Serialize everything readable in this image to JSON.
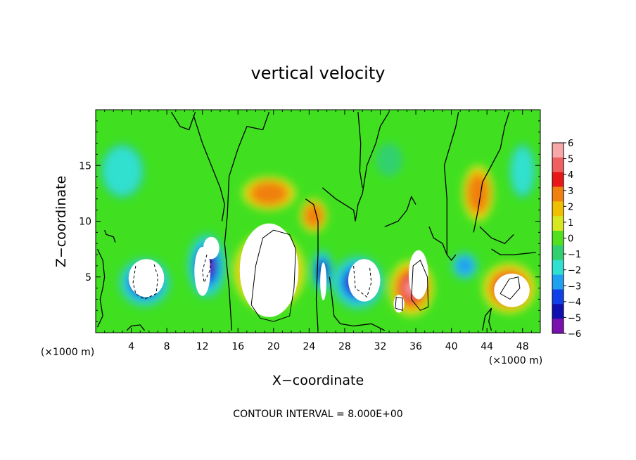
{
  "chart_data": {
    "type": "heatmap",
    "title": "vertical velocity",
    "xlabel": "X−coordinate",
    "ylabel": "Z−coordinate",
    "x_unit": "(×1000 m)",
    "x_unit_right": "(×1000 m)",
    "xlim": [
      0,
      50
    ],
    "ylim": [
      0,
      20
    ],
    "x_ticks": [
      4,
      8,
      12,
      16,
      20,
      24,
      28,
      32,
      36,
      40,
      44,
      48
    ],
    "x_tick_labels": [
      "4",
      "8",
      "12",
      "16",
      "20",
      "24",
      "28",
      "32",
      "36",
      "40",
      "44",
      "48"
    ],
    "y_ticks": [
      5,
      10,
      15
    ],
    "y_tick_labels": [
      "5",
      "10",
      "15"
    ],
    "colorbar": {
      "levels": [
        6,
        5,
        4,
        3,
        2,
        1,
        0,
        -1,
        -2,
        -3,
        -4,
        -5,
        -6
      ],
      "level_labels": [
        "6",
        "5",
        "4",
        "3",
        "2",
        "1",
        "0",
        "−1",
        "−2",
        "−3",
        "−4",
        "−5",
        "−6"
      ],
      "colors": [
        "#f8a8a8",
        "#f06060",
        "#e81818",
        "#f08010",
        "#f0c000",
        "#d8e820",
        "#50e020",
        "#30d070",
        "#30e0d0",
        "#20a0f0",
        "#1040e8",
        "#1010b0",
        "#7a10b0"
      ]
    },
    "background_color": "#40e020",
    "features": [
      {
        "name": "updraft",
        "x": 19.5,
        "z": 5.5,
        "w": 8,
        "zw": 7,
        "sign": 1,
        "amp": 1.0
      },
      {
        "name": "updraft",
        "x": 35.5,
        "z": 4.0,
        "w": 5,
        "zw": 5,
        "sign": 1,
        "amp": 1.0
      },
      {
        "name": "updraft",
        "x": 46.5,
        "z": 4.0,
        "w": 6,
        "zw": 4.5,
        "sign": 1,
        "amp": 1.0
      },
      {
        "name": "updraft-upper",
        "x": 19.5,
        "z": 12.5,
        "w": 6,
        "zw": 3,
        "sign": 1,
        "amp": 0.45
      },
      {
        "name": "updraft-upper",
        "x": 24.5,
        "z": 10.5,
        "w": 3,
        "zw": 3,
        "sign": 1,
        "amp": 0.45
      },
      {
        "name": "updraft-upper",
        "x": 43.0,
        "z": 12.5,
        "w": 3.5,
        "zw": 5,
        "sign": 1,
        "amp": 0.5
      },
      {
        "name": "downdraft",
        "x": 5.5,
        "z": 4.5,
        "w": 6,
        "zw": 4.5,
        "sign": -1,
        "amp": 1.0
      },
      {
        "name": "downdraft",
        "x": 12.5,
        "z": 6.0,
        "w": 4.5,
        "zw": 6,
        "sign": -1,
        "amp": 1.0
      },
      {
        "name": "downdraft",
        "x": 29.5,
        "z": 4.5,
        "w": 6,
        "zw": 5,
        "sign": -1,
        "amp": 1.0
      },
      {
        "name": "downdraft",
        "x": 25.5,
        "z": 5.5,
        "w": 2.5,
        "zw": 4,
        "sign": -1,
        "amp": 0.8
      },
      {
        "name": "downdraft",
        "x": 41.5,
        "z": 6.0,
        "w": 3,
        "zw": 2.5,
        "sign": -1,
        "amp": 0.55
      },
      {
        "name": "downdraft-weak",
        "x": 3.0,
        "z": 14.5,
        "w": 5,
        "zw": 5,
        "sign": -1,
        "amp": 0.3
      },
      {
        "name": "downdraft-weak",
        "x": 48.0,
        "z": 14.5,
        "w": 3,
        "zw": 5,
        "sign": -1,
        "amp": 0.3
      },
      {
        "name": "downdraft-weak",
        "x": 33.0,
        "z": 15.5,
        "w": 3,
        "zw": 3,
        "sign": -1,
        "amp": 0.22
      }
    ],
    "saturated_cores": [
      {
        "x": 5.7,
        "z": 4.9,
        "rx": 2.0,
        "rz": 1.7,
        "sign": -1
      },
      {
        "x": 12.0,
        "z": 5.5,
        "rx": 0.9,
        "rz": 2.2,
        "sign": -1
      },
      {
        "x": 13.0,
        "z": 7.6,
        "rx": 0.9,
        "rz": 1.0,
        "sign": -1
      },
      {
        "x": 19.5,
        "z": 5.6,
        "rx": 3.3,
        "rz": 4.2,
        "sign": 1
      },
      {
        "x": 30.2,
        "z": 4.7,
        "rx": 1.8,
        "rz": 1.9,
        "sign": -1
      },
      {
        "x": 25.6,
        "z": 4.6,
        "rx": 0.35,
        "rz": 1.7,
        "sign": -1
      },
      {
        "x": 36.3,
        "z": 5.2,
        "rx": 1.1,
        "rz": 2.2,
        "sign": 1
      },
      {
        "x": 34.1,
        "z": 2.6,
        "rx": 0.6,
        "rz": 0.8,
        "sign": 1
      },
      {
        "x": 46.8,
        "z": 3.8,
        "rx": 2.0,
        "rz": 1.5,
        "sign": 1
      }
    ],
    "zero_contours": [
      [
        [
          1.0,
          9.2
        ],
        [
          1.2,
          8.8
        ],
        [
          2.0,
          8.6
        ],
        [
          2.2,
          8.1
        ]
      ],
      [
        [
          14.2,
          10.0
        ],
        [
          14.5,
          11.5
        ],
        [
          14.0,
          13.0
        ],
        [
          12.0,
          17.0
        ],
        [
          11.0,
          19.5
        ]
      ],
      [
        [
          15.3,
          0.2
        ],
        [
          15.0,
          4.0
        ],
        [
          14.5,
          8.0
        ],
        [
          14.8,
          10.5
        ],
        [
          15.0,
          14.0
        ],
        [
          16.0,
          16.5
        ],
        [
          17.0,
          18.5
        ],
        [
          18.8,
          18.2
        ],
        [
          19.5,
          19.8
        ]
      ],
      [
        [
          23.6,
          12.0
        ],
        [
          24.5,
          11.5
        ],
        [
          25.0,
          10.0
        ],
        [
          25.0,
          7.0
        ],
        [
          24.8,
          3.0
        ],
        [
          25.0,
          0.2
        ]
      ],
      [
        [
          25.5,
          13.0
        ],
        [
          27.0,
          12.0
        ],
        [
          29.0,
          11.0
        ],
        [
          29.2,
          10.0
        ],
        [
          29.5,
          11.5
        ],
        [
          30.0,
          12.5
        ],
        [
          30.5,
          15.0
        ],
        [
          31.5,
          17.0
        ],
        [
          32.0,
          18.5
        ],
        [
          33.0,
          19.8
        ]
      ],
      [
        [
          26.3,
          5.0
        ],
        [
          26.6,
          3.0
        ],
        [
          26.8,
          1.5
        ],
        [
          27.5,
          0.8
        ],
        [
          29.0,
          0.6
        ],
        [
          31.0,
          0.8
        ],
        [
          32.5,
          0.2
        ]
      ],
      [
        [
          32.5,
          9.5
        ],
        [
          34.0,
          10.0
        ],
        [
          35.0,
          11.0
        ],
        [
          35.5,
          12.2
        ],
        [
          36.0,
          11.5
        ]
      ],
      [
        [
          37.5,
          9.5
        ],
        [
          38.0,
          8.5
        ],
        [
          39.0,
          8.0
        ],
        [
          39.5,
          7.0
        ],
        [
          40.0,
          6.5
        ],
        [
          40.5,
          7.0
        ]
      ],
      [
        [
          39.5,
          7.0
        ],
        [
          39.5,
          12.0
        ],
        [
          39.2,
          15.0
        ],
        [
          40.5,
          18.5
        ],
        [
          40.8,
          19.8
        ]
      ],
      [
        [
          42.5,
          9.0
        ],
        [
          43.0,
          11.0
        ],
        [
          43.5,
          13.5
        ],
        [
          44.5,
          15.0
        ],
        [
          45.5,
          16.5
        ],
        [
          46.0,
          18.5
        ],
        [
          46.5,
          19.8
        ]
      ],
      [
        [
          43.2,
          9.5
        ],
        [
          44.5,
          8.5
        ],
        [
          46.0,
          8.0
        ],
        [
          47.0,
          8.8
        ]
      ],
      [
        [
          44.5,
          7.5
        ],
        [
          45.5,
          7.0
        ],
        [
          47.0,
          7.0
        ],
        [
          49.5,
          7.2
        ]
      ],
      [
        [
          0.2,
          7.5
        ],
        [
          0.8,
          6.5
        ],
        [
          1.0,
          5.0
        ],
        [
          0.8,
          4.0
        ],
        [
          0.5,
          3.0
        ],
        [
          0.8,
          1.5
        ],
        [
          0.2,
          0.5
        ]
      ],
      [
        [
          3.5,
          0.2
        ],
        [
          4.0,
          0.6
        ],
        [
          5.0,
          0.7
        ],
        [
          5.5,
          0.2
        ]
      ],
      [
        [
          43.5,
          0.2
        ],
        [
          43.8,
          1.5
        ],
        [
          44.5,
          2.2
        ],
        [
          44.2,
          1.0
        ],
        [
          44.5,
          0.2
        ]
      ],
      [
        [
          29.5,
          19.8
        ],
        [
          29.8,
          17.0
        ],
        [
          29.7,
          14.5
        ],
        [
          30.0,
          13.0
        ]
      ],
      [
        [
          8.5,
          19.8
        ],
        [
          9.5,
          18.5
        ],
        [
          10.5,
          18.2
        ],
        [
          11.2,
          19.8
        ]
      ]
    ],
    "positive_contours": [
      [
        [
          17.5,
          2.5
        ],
        [
          18.0,
          6.0
        ],
        [
          18.8,
          8.5
        ],
        [
          20.0,
          9.2
        ],
        [
          21.8,
          8.8
        ],
        [
          22.5,
          7.5
        ],
        [
          22.3,
          4.0
        ],
        [
          21.8,
          1.5
        ],
        [
          20.0,
          1.0
        ],
        [
          18.5,
          1.3
        ],
        [
          17.5,
          2.5
        ]
      ],
      [
        [
          35.5,
          3.0
        ],
        [
          35.7,
          6.0
        ],
        [
          36.5,
          6.5
        ],
        [
          37.3,
          5.0
        ],
        [
          37.4,
          2.3
        ],
        [
          36.5,
          2.0
        ],
        [
          35.5,
          3.0
        ]
      ],
      [
        [
          33.7,
          2.2
        ],
        [
          33.8,
          3.2
        ],
        [
          34.5,
          3.1
        ],
        [
          34.5,
          2.0
        ],
        [
          33.7,
          2.2
        ]
      ],
      [
        [
          45.5,
          3.5
        ],
        [
          46.5,
          4.8
        ],
        [
          47.5,
          5.0
        ],
        [
          47.7,
          4.0
        ],
        [
          46.6,
          3.0
        ],
        [
          45.5,
          3.5
        ]
      ]
    ],
    "negative_contours": [
      [
        [
          4.5,
          6.0
        ],
        [
          4.2,
          4.5
        ],
        [
          4.5,
          3.5
        ],
        [
          5.5,
          3.0
        ],
        [
          6.8,
          3.5
        ],
        [
          7.0,
          5.0
        ],
        [
          6.5,
          6.3
        ]
      ],
      [
        [
          12.5,
          7.0
        ],
        [
          12.0,
          5.5
        ],
        [
          12.2,
          4.5
        ],
        [
          12.8,
          5.5
        ],
        [
          13.0,
          6.5
        ]
      ],
      [
        [
          29.0,
          6.0
        ],
        [
          29.2,
          4.0
        ],
        [
          30.5,
          3.2
        ],
        [
          31.0,
          4.5
        ],
        [
          30.8,
          6.0
        ]
      ]
    ],
    "annotation": "CONTOUR INTERVAL = 8.000E+00"
  }
}
